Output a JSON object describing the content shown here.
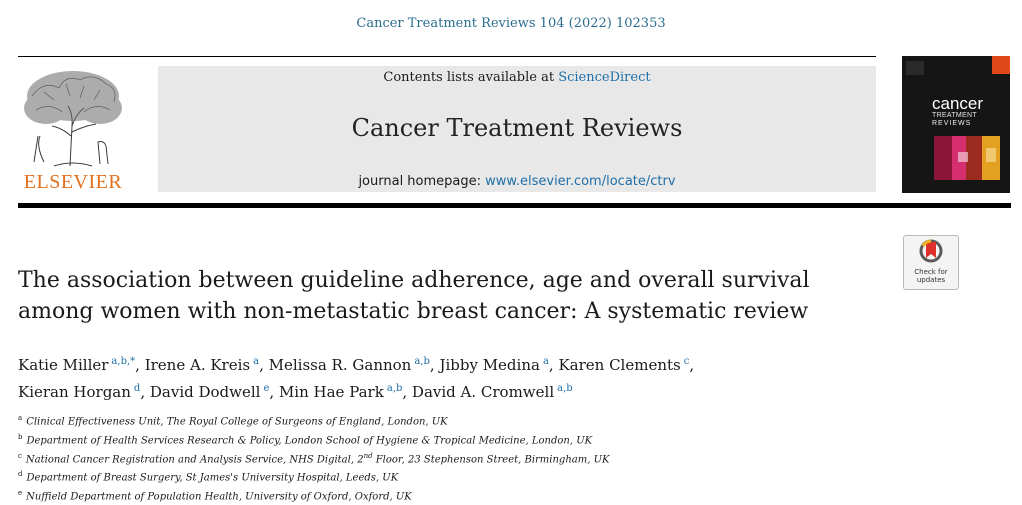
{
  "header": {
    "citation": "Cancer Treatment Reviews 104 (2022) 102353",
    "contents_prefix": "Contents lists available at ",
    "contents_link": "ScienceDirect",
    "journal_title": "Cancer Treatment Reviews",
    "homepage_prefix": "journal homepage: ",
    "homepage_link": "www.elsevier.com/locate/ctrv"
  },
  "publisher": {
    "wordmark": "ELSEVIER",
    "logo_icon": "tree-of-knowledge-icon",
    "color": "#e2701c"
  },
  "cover": {
    "title": "cancer",
    "subtitle": "TREATMENT",
    "subtitle2": "REVIEWS"
  },
  "check_updates": {
    "label_line1": "Check for",
    "label_line2": "updates",
    "icon": "bookmark-check-icon"
  },
  "article": {
    "title": "The association between guideline adherence, age and overall survival among women with non-metastatic breast cancer: A systematic review"
  },
  "authors": [
    {
      "name": "Katie Miller",
      "sup": "a,b,*",
      "sep": ", "
    },
    {
      "name": "Irene A. Kreis",
      "sup": "a",
      "sep": ", "
    },
    {
      "name": "Melissa R. Gannon",
      "sup": "a,b",
      "sep": ", "
    },
    {
      "name": "Jibby Medina",
      "sup": "a",
      "sep": ", "
    },
    {
      "name": "Karen Clements",
      "sup": "c",
      "sep": ","
    },
    {
      "name": "Kieran Horgan",
      "sup": "d",
      "sep": ", "
    },
    {
      "name": "David Dodwell",
      "sup": "e",
      "sep": ", "
    },
    {
      "name": "Min Hae Park",
      "sup": "a,b",
      "sep": ", "
    },
    {
      "name": "David A. Cromwell",
      "sup": "a,b",
      "sep": ""
    }
  ],
  "affiliations": [
    {
      "label": "a",
      "text": "Clinical Effectiveness Unit, The Royal College of Surgeons of England, London, UK"
    },
    {
      "label": "b",
      "text": "Department of Health Services Research & Policy, London School of Hygiene & Tropical Medicine, London, UK"
    },
    {
      "label": "c",
      "text_before": "National Cancer Registration and Analysis Service, NHS Digital, 2",
      "floor_sup": "nd",
      "text_after": " Floor, 23 Stephenson Street, Birmingham, UK"
    },
    {
      "label": "d",
      "text": "Department of Breast Surgery, St James's University Hospital, Leeds, UK"
    },
    {
      "label": "e",
      "text": "Nuffield Department of Population Health, University of Oxford, Oxford, UK"
    }
  ],
  "colors": {
    "link": "#1f6fa8",
    "banner": "#e8e8e8"
  }
}
